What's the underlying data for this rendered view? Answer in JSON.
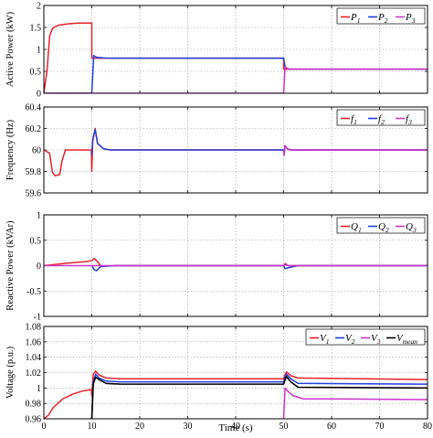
{
  "x_axis": {
    "label": "Time (s)",
    "ticks": [
      "0",
      "10",
      "20",
      "30",
      "40",
      "50",
      "60",
      "70",
      "80"
    ],
    "range": [
      0,
      80
    ]
  },
  "colors": {
    "series_1": "#e8212a",
    "series_2": "#1f3fdc",
    "series_3": "#cc33cc",
    "series_4": "#000000"
  },
  "chart_data": [
    {
      "type": "line",
      "ylabel": "Active Power (kW)",
      "ylim": [
        0,
        2
      ],
      "yticks": [
        "0",
        "0.5",
        "1",
        "1.5",
        "2"
      ],
      "grid": true,
      "legend_position": "top-right",
      "series": [
        {
          "name": "P",
          "subscript": "1",
          "points": [
            [
              0,
              0
            ],
            [
              0.7,
              0.55
            ],
            [
              1.2,
              1.3
            ],
            [
              1.8,
              1.48
            ],
            [
              3,
              1.55
            ],
            [
              5,
              1.58
            ],
            [
              7,
              1.6
            ],
            [
              10,
              1.6
            ],
            [
              10,
              0.8
            ],
            [
              50,
              0.8
            ],
            [
              50,
              0.55
            ],
            [
              80,
              0.55
            ]
          ]
        },
        {
          "name": "P",
          "subscript": "2",
          "points": [
            [
              0,
              0
            ],
            [
              10,
              0
            ],
            [
              10.4,
              0.86
            ],
            [
              11,
              0.82
            ],
            [
              13,
              0.8
            ],
            [
              50,
              0.8
            ],
            [
              50.3,
              0.6
            ],
            [
              51,
              0.55
            ],
            [
              80,
              0.55
            ]
          ]
        },
        {
          "name": "P",
          "subscript": "3",
          "points": [
            [
              0,
              0
            ],
            [
              50,
              0
            ],
            [
              50.3,
              0.6
            ],
            [
              51,
              0.55
            ],
            [
              80,
              0.55
            ]
          ]
        }
      ]
    },
    {
      "type": "line",
      "ylabel": "Frequency (Hz)",
      "ylim": [
        59.6,
        60.4
      ],
      "yticks": [
        "59.6",
        "59.8",
        "60",
        "60.2",
        "60.4"
      ],
      "grid": true,
      "legend_position": "top-right",
      "series": [
        {
          "name": "f",
          "subscript": "1",
          "points": [
            [
              0,
              60
            ],
            [
              1.2,
              59.97
            ],
            [
              1.8,
              59.79
            ],
            [
              2.3,
              59.76
            ],
            [
              3.3,
              59.77
            ],
            [
              3.8,
              59.9
            ],
            [
              4.5,
              60
            ],
            [
              9.9,
              60
            ],
            [
              10,
              59.8
            ],
            [
              10.2,
              60.08
            ],
            [
              10.7,
              60.2
            ],
            [
              11.2,
              60.06
            ],
            [
              12.5,
              60.01
            ],
            [
              14,
              60
            ],
            [
              50,
              60
            ],
            [
              50.1,
              59.96
            ],
            [
              50.3,
              60.04
            ],
            [
              50.8,
              60.01
            ],
            [
              51.5,
              60
            ],
            [
              80,
              60
            ]
          ]
        },
        {
          "name": "f",
          "subscript": "2",
          "points": [
            [
              10,
              59.95
            ],
            [
              10.2,
              60.1
            ],
            [
              10.7,
              60.19
            ],
            [
              11.2,
              60.06
            ],
            [
              12.5,
              60.01
            ],
            [
              14,
              60
            ],
            [
              50,
              60
            ],
            [
              50.1,
              59.96
            ],
            [
              50.3,
              60.04
            ],
            [
              50.8,
              60.01
            ],
            [
              51.5,
              60
            ],
            [
              80,
              60
            ]
          ]
        },
        {
          "name": "f",
          "subscript": "3",
          "points": [
            [
              50,
              60
            ],
            [
              50.1,
              59.95
            ],
            [
              50.3,
              60.04
            ],
            [
              50.8,
              60.01
            ],
            [
              51.5,
              60
            ],
            [
              80,
              60
            ]
          ]
        }
      ]
    },
    {
      "type": "line",
      "ylabel": "Reactive Power (kVAr)",
      "ylim": [
        -1,
        1
      ],
      "yticks": [
        "-1",
        "-0.5",
        "0",
        "0.5",
        "1"
      ],
      "grid": true,
      "legend_position": "top-right",
      "series": [
        {
          "name": "Q",
          "subscript": "1",
          "points": [
            [
              0,
              0
            ],
            [
              2,
              0.02
            ],
            [
              5,
              0.05
            ],
            [
              9,
              0.08
            ],
            [
              10,
              0.1
            ],
            [
              10.5,
              0.14
            ],
            [
              11,
              0.1
            ],
            [
              11.8,
              0
            ],
            [
              13,
              -0.01
            ],
            [
              15,
              0
            ],
            [
              50,
              0
            ],
            [
              50.3,
              0.04
            ],
            [
              51,
              0
            ],
            [
              80,
              0
            ]
          ]
        },
        {
          "name": "Q",
          "subscript": "2",
          "points": [
            [
              10,
              0
            ],
            [
              10.5,
              -0.08
            ],
            [
              11,
              -0.1
            ],
            [
              11.8,
              -0.02
            ],
            [
              13,
              -0.01
            ],
            [
              15,
              0
            ],
            [
              50,
              0
            ],
            [
              50.3,
              -0.06
            ],
            [
              51,
              -0.04
            ],
            [
              52,
              -0.02
            ],
            [
              53,
              0
            ],
            [
              80,
              0
            ]
          ]
        },
        {
          "name": "Q",
          "subscript": "3",
          "points": [
            [
              0,
              0
            ],
            [
              50,
              0
            ],
            [
              50.3,
              0.02
            ],
            [
              51,
              0
            ],
            [
              80,
              0
            ]
          ]
        }
      ]
    },
    {
      "type": "line",
      "ylabel": "Voltage (p.u.)",
      "ylim": [
        0.96,
        1.08
      ],
      "yticks": [
        "0.96",
        "0.98",
        "1",
        "1.02",
        "1.04",
        "1.06",
        "1.08"
      ],
      "grid": true,
      "legend_position": "top-right",
      "series": [
        {
          "name": "V",
          "subscript": "1",
          "points": [
            [
              0,
              0.96
            ],
            [
              1,
              0.965
            ],
            [
              2,
              0.975
            ],
            [
              4,
              0.986
            ],
            [
              6,
              0.992
            ],
            [
              8,
              0.996
            ],
            [
              9.9,
              0.998
            ],
            [
              10,
              0.99
            ],
            [
              10.3,
              1.018
            ],
            [
              10.8,
              1.022
            ],
            [
              11.5,
              1.017
            ],
            [
              13,
              1.013
            ],
            [
              16,
              1.012
            ],
            [
              50,
              1.012
            ],
            [
              50.2,
              1.016
            ],
            [
              50.6,
              1.021
            ],
            [
              51.5,
              1.016
            ],
            [
              53,
              1.013
            ],
            [
              80,
              1.011
            ]
          ]
        },
        {
          "name": "V",
          "subscript": "2",
          "points": [
            [
              9.8,
              0.96
            ],
            [
              10,
              0.96
            ],
            [
              10.3,
              1.008
            ],
            [
              10.8,
              1.018
            ],
            [
              11.5,
              1.013
            ],
            [
              13,
              1.009
            ],
            [
              16,
              1.008
            ],
            [
              50,
              1.008
            ],
            [
              50.2,
              1.012
            ],
            [
              50.6,
              1.018
            ],
            [
              51.5,
              1.012
            ],
            [
              53,
              1.006
            ],
            [
              80,
              1.005
            ]
          ]
        },
        {
          "name": "V",
          "subscript": "3",
          "points": [
            [
              49.8,
              0.96
            ],
            [
              50,
              0.96
            ],
            [
              50.3,
              1.0
            ],
            [
              51,
              0.995
            ],
            [
              52,
              0.99
            ],
            [
              54,
              0.986
            ],
            [
              80,
              0.985
            ]
          ]
        },
        {
          "name": "V",
          "subscript": "mean",
          "points": [
            [
              9.8,
              0.96
            ],
            [
              10,
              0.96
            ],
            [
              10.3,
              1.005
            ],
            [
              10.8,
              1.014
            ],
            [
              11.5,
              1.011
            ],
            [
              13,
              1.006
            ],
            [
              16,
              1.005
            ],
            [
              50,
              1.005
            ],
            [
              50.2,
              1.009
            ],
            [
              50.6,
              1.015
            ],
            [
              51.5,
              1.008
            ],
            [
              53,
              1.001
            ],
            [
              80,
              1.0
            ]
          ]
        }
      ]
    }
  ]
}
